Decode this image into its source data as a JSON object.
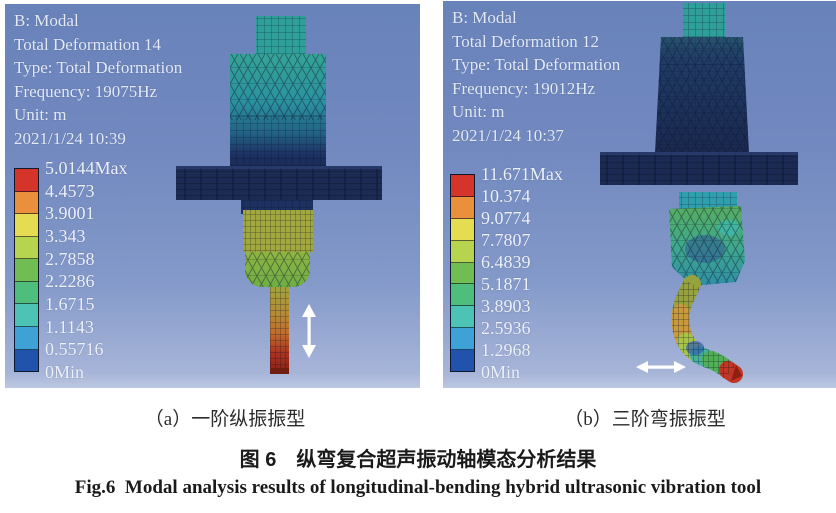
{
  "panel_a": {
    "header_lines": [
      "B: Modal",
      "Total Deformation 14",
      "Type: Total Deformation",
      "Frequency: 19075Hz",
      "Unit: m",
      "2021/1/24 10:39"
    ],
    "legend": {
      "labels": [
        "5.0144Max",
        "4.4573",
        "3.9001",
        "3.343",
        "2.7858",
        "2.2286",
        "1.6715",
        "1.1143",
        "0.55716",
        "0Min"
      ],
      "band_colors": [
        "#d5342a",
        "#ea8f3b",
        "#e6dc52",
        "#b7d44e",
        "#6fbd53",
        "#4fbd7c",
        "#4cc3b4",
        "#3fa2d6",
        "#2153ac"
      ]
    },
    "arrow_icon": "vertical-double-arrow"
  },
  "panel_b": {
    "header_lines": [
      "B: Modal",
      "Total Deformation 12",
      "Type: Total Deformation",
      "Frequency: 19012Hz",
      "Unit: m",
      "2021/1/24 10:37"
    ],
    "legend": {
      "labels": [
        "11.671Max",
        "10.374",
        "9.0774",
        "7.7807",
        "6.4839",
        "5.1871",
        "3.8903",
        "2.5936",
        "1.2968",
        "0Min"
      ],
      "band_colors": [
        "#d5342a",
        "#ea8f3b",
        "#e6dc52",
        "#b7d44e",
        "#6fbd53",
        "#4fbd7c",
        "#4cc3b4",
        "#3fa2d6",
        "#2153ac"
      ]
    },
    "arrow_icon": "horizontal-double-arrow"
  },
  "captions": {
    "sub_a": "（a）一阶纵振振型",
    "sub_b": "（b）三阶弯振振型",
    "zh": "图 6　纵弯复合超声振动轴模态分析结果",
    "en": "Fig.6  Modal analysis results of longitudinal-bending hybrid ultrasonic vibration tool"
  },
  "colors": {
    "viewport_bg_top": "#6882ba",
    "viewport_bg_bottom": "#bcc7e0",
    "annotation_text": "#e4eaf7"
  }
}
